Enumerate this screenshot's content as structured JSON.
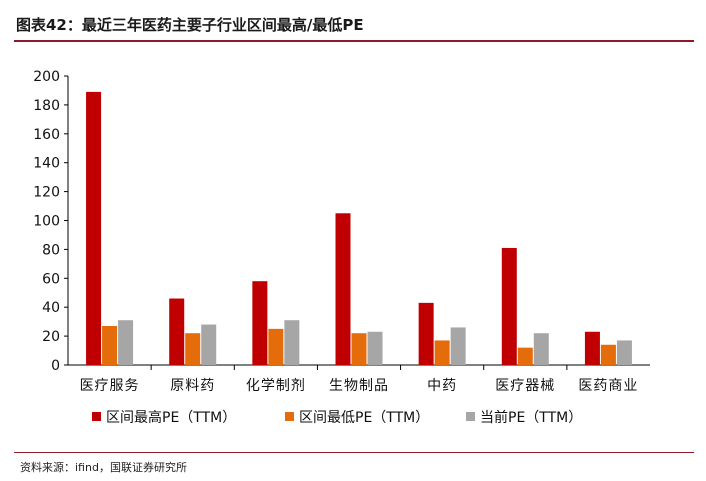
{
  "header": {
    "title": "图表42：最近三年医药主要子行业区间最高/最低PE"
  },
  "footer": {
    "source": "资料来源：ifind，国联证券研究所"
  },
  "colors": {
    "accent_line": "#8b1a2b"
  },
  "chart_data": {
    "type": "bar",
    "categories": [
      "医疗服务",
      "原料药",
      "化学制剂",
      "生物制品",
      "中药",
      "医疗器械",
      "医药商业"
    ],
    "series": [
      {
        "name": "区间最高PE（TTM）",
        "color": "#c00000",
        "values": [
          189,
          46,
          58,
          105,
          43,
          81,
          23
        ]
      },
      {
        "name": "区间最低PE（TTM）",
        "color": "#e46c0a",
        "values": [
          27,
          22,
          25,
          22,
          17,
          12,
          14
        ]
      },
      {
        "name": "当前PE（TTM）",
        "color": "#a6a6a6",
        "values": [
          31,
          28,
          31,
          23,
          26,
          22,
          17
        ]
      }
    ],
    "ylim": [
      0,
      200
    ],
    "yticks": [
      0,
      20,
      40,
      60,
      80,
      100,
      120,
      140,
      160,
      180,
      200
    ],
    "grid": false,
    "legend": "bottom"
  }
}
